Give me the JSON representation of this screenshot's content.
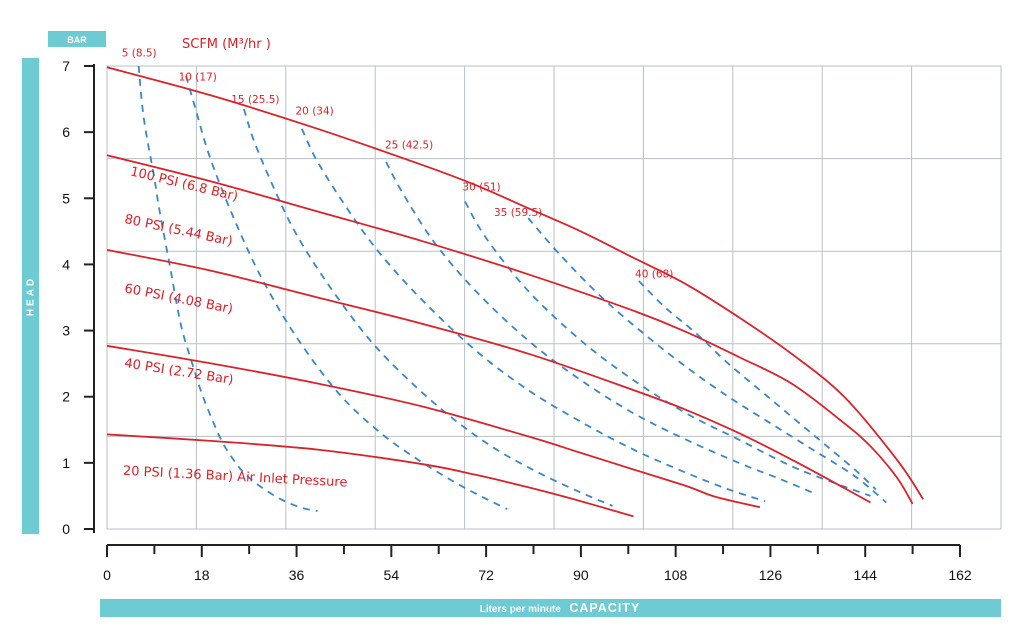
{
  "chart_data": {
    "type": "line",
    "y_unit_label": "BAR",
    "ylabel": "HEAD",
    "xlabel_prefix": "Liters per minute",
    "xlabel_main": "CAPACITY",
    "scfm_title": "SCFM (M³/hr )",
    "xlim": [
      0,
      162
    ],
    "ylim": [
      0,
      7
    ],
    "x_ticks": [
      0,
      18,
      36,
      54,
      72,
      90,
      108,
      126,
      144,
      162
    ],
    "x_tick_labels": [
      "0",
      "18",
      "36",
      "54",
      "72",
      "90",
      "108",
      "126",
      "144",
      "162"
    ],
    "y_ticks": [
      0,
      1,
      2,
      3,
      4,
      5,
      6,
      7
    ],
    "y_tick_labels": [
      "0",
      "1",
      "2",
      "3",
      "4",
      "5",
      "6",
      "7"
    ],
    "grid": true,
    "colors": {
      "pressure": "#d9222b",
      "scfm": "#3a86c8",
      "bar": "#6ecbd3",
      "text": "#111111"
    },
    "series": [
      {
        "name": "100 PSI (6.8 Bar)",
        "kind": "pressure",
        "label_pos": [
          4.3,
          5.35
        ],
        "label_rot": 13.5,
        "x": [
          0,
          20,
          40,
          60,
          70,
          80,
          90,
          100,
          110,
          120,
          130,
          140,
          150,
          155
        ],
        "y": [
          6.98,
          6.55,
          6.05,
          5.5,
          5.2,
          4.85,
          4.5,
          4.1,
          3.7,
          3.2,
          2.65,
          2.0,
          1.05,
          0.45
        ]
      },
      {
        "name": "80 PSI (5.44 Bar)",
        "kind": "pressure",
        "label_pos": [
          3.2,
          4.63
        ],
        "label_rot": 12,
        "x": [
          0,
          20,
          40,
          60,
          80,
          100,
          110,
          120,
          130,
          140,
          145,
          150,
          153
        ],
        "y": [
          5.65,
          5.25,
          4.8,
          4.35,
          3.85,
          3.3,
          2.98,
          2.6,
          2.2,
          1.6,
          1.25,
          0.78,
          0.38
        ]
      },
      {
        "name": "60 PSI (4.08 Bar)",
        "kind": "pressure",
        "label_pos": [
          3.2,
          3.58
        ],
        "label_rot": 11,
        "x": [
          0,
          20,
          40,
          60,
          80,
          100,
          110,
          120,
          130,
          140,
          145
        ],
        "y": [
          4.22,
          3.9,
          3.5,
          3.1,
          2.65,
          2.1,
          1.8,
          1.45,
          1.05,
          0.62,
          0.4
        ]
      },
      {
        "name": "40 PSI (2.72 Bar)",
        "kind": "pressure",
        "label_pos": [
          3.2,
          2.45
        ],
        "label_rot": 9,
        "x": [
          0,
          20,
          40,
          60,
          80,
          90,
          100,
          110,
          115,
          120,
          124
        ],
        "y": [
          2.77,
          2.5,
          2.2,
          1.85,
          1.4,
          1.15,
          0.9,
          0.65,
          0.5,
          0.4,
          0.33
        ]
      },
      {
        "name": "20 PSI (1.36 Bar) Air Inlet Pressure",
        "kind": "pressure",
        "label_pos": [
          3.0,
          0.82
        ],
        "label_rot": 3,
        "x": [
          0,
          20,
          40,
          60,
          70,
          80,
          90,
          100
        ],
        "y": [
          1.43,
          1.33,
          1.2,
          0.98,
          0.82,
          0.63,
          0.42,
          0.19
        ]
      },
      {
        "name": "5 (8.5)",
        "kind": "scfm",
        "label_pos": [
          2.8,
          7.14
        ],
        "x": [
          6,
          7,
          9,
          10,
          12,
          14,
          16,
          18,
          20,
          22,
          24,
          26,
          29,
          33,
          37,
          40
        ],
        "y": [
          7.0,
          6.2,
          5.3,
          4.8,
          3.95,
          3.1,
          2.55,
          2.05,
          1.65,
          1.3,
          1.05,
          0.85,
          0.65,
          0.45,
          0.32,
          0.27
        ]
      },
      {
        "name": "10 (17)",
        "kind": "scfm",
        "label_pos": [
          13.6,
          6.78
        ],
        "x": [
          15,
          17,
          19,
          22,
          26,
          30,
          36,
          44,
          52,
          60,
          68,
          76
        ],
        "y": [
          6.85,
          6.3,
          5.75,
          5.1,
          4.35,
          3.7,
          2.9,
          2.05,
          1.45,
          1.0,
          0.62,
          0.3
        ]
      },
      {
        "name": "15 (25.5)",
        "kind": "scfm",
        "label_pos": [
          23.6,
          6.44
        ],
        "x": [
          26,
          28,
          32,
          36,
          42,
          50,
          58,
          66,
          74,
          82,
          90,
          96
        ],
        "y": [
          6.35,
          5.85,
          5.1,
          4.45,
          3.7,
          2.85,
          2.2,
          1.65,
          1.2,
          0.85,
          0.55,
          0.35
        ]
      },
      {
        "name": "20 (34)",
        "kind": "scfm",
        "label_pos": [
          35.8,
          6.27
        ],
        "x": [
          37,
          40,
          46,
          52,
          60,
          70,
          80,
          90,
          100,
          110,
          118,
          125
        ],
        "y": [
          6.05,
          5.55,
          4.8,
          4.15,
          3.45,
          2.7,
          2.1,
          1.62,
          1.2,
          0.85,
          0.6,
          0.42
        ]
      },
      {
        "name": "25 (42.5)",
        "kind": "scfm",
        "label_pos": [
          52.8,
          5.75
        ],
        "x": [
          53,
          56,
          62,
          70,
          80,
          90,
          100,
          110,
          120,
          128,
          134
        ],
        "y": [
          5.55,
          5.1,
          4.35,
          3.6,
          2.85,
          2.25,
          1.75,
          1.35,
          1.0,
          0.75,
          0.55
        ]
      },
      {
        "name": "30 (51)",
        "kind": "scfm",
        "label_pos": [
          67.5,
          5.12
        ],
        "x": [
          68,
          72,
          80,
          90,
          100,
          110,
          120,
          130,
          138,
          145
        ],
        "y": [
          4.95,
          4.4,
          3.6,
          2.85,
          2.25,
          1.75,
          1.35,
          0.95,
          0.7,
          0.5
        ]
      },
      {
        "name": "35 (59.5)",
        "kind": "scfm",
        "label_pos": [
          73.5,
          4.73
        ],
        "x": [
          80,
          86,
          94,
          102,
          110,
          118,
          126,
          134,
          142,
          148
        ],
        "y": [
          4.7,
          4.15,
          3.5,
          2.95,
          2.45,
          2.0,
          1.6,
          1.2,
          0.8,
          0.4
        ]
      },
      {
        "name": "40 (68)",
        "kind": "scfm",
        "label_pos": [
          100.3,
          3.8
        ],
        "x": [
          101,
          106,
          112,
          118,
          124,
          130,
          136,
          142,
          146
        ],
        "y": [
          3.75,
          3.35,
          2.95,
          2.5,
          2.1,
          1.7,
          1.3,
          0.9,
          0.6
        ]
      }
    ]
  }
}
